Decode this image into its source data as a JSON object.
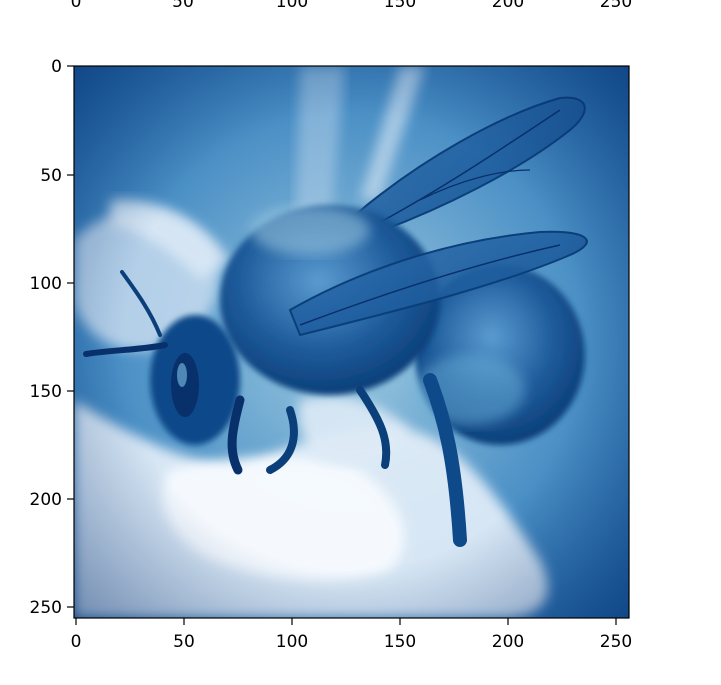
{
  "colormap": {
    "name": "Blues",
    "light": "#f7fbff",
    "mid": "#6baed6",
    "dark": "#08306b"
  },
  "top_axis": {
    "tick_labels": [
      "0",
      "50",
      "100",
      "150",
      "200",
      "250"
    ]
  },
  "bottom_axis": {
    "tick_labels": [
      "0",
      "50",
      "100",
      "150",
      "200",
      "250"
    ]
  },
  "left_axis": {
    "tick_labels": [
      "0",
      "50",
      "100",
      "150",
      "200",
      "250"
    ]
  },
  "image": {
    "subject": "bumblebee on a white flower, rendered in a blue colormap",
    "icon": "bee-photo",
    "extent": [
      0,
      256,
      256,
      0
    ]
  }
}
